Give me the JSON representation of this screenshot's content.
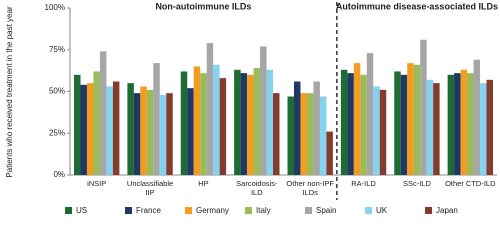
{
  "chart_data": {
    "type": "bar",
    "y_label": "Patients who received treatment in the past year",
    "annotations": [
      "Non-autoimmune ILDs",
      "Autoimmune disease-associated ILDs"
    ],
    "categories": [
      "iNSIP",
      "Unclassifiable IIP",
      "HP",
      "Sarcoidosis-ILD",
      "Other non-IPF ILDs",
      "RA-ILD",
      "SSc-ILD",
      "Other CTD-ILD"
    ],
    "series": [
      {
        "name": "US",
        "color": "#1e6b34",
        "values": [
          60,
          55,
          62,
          63,
          47,
          63,
          62,
          60
        ]
      },
      {
        "name": "France",
        "color": "#1f3864",
        "values": [
          54,
          49,
          52,
          61,
          56,
          61,
          60,
          61
        ]
      },
      {
        "name": "Germany",
        "color": "#f39c1f",
        "values": [
          55,
          53,
          65,
          60,
          49,
          67,
          67,
          63
        ]
      },
      {
        "name": "Italy",
        "color": "#9bbb59",
        "values": [
          62,
          51,
          61,
          64,
          49,
          60,
          66,
          61
        ]
      },
      {
        "name": "Spain",
        "color": "#a6a6a6",
        "values": [
          74,
          67,
          79,
          77,
          56,
          73,
          81,
          69
        ]
      },
      {
        "name": "UK",
        "color": "#86d3ef",
        "values": [
          53,
          48,
          66,
          63,
          47,
          53,
          57,
          55
        ]
      },
      {
        "name": "Japan",
        "color": "#843c2c",
        "values": [
          56,
          49,
          58,
          49,
          26,
          51,
          55,
          57
        ]
      }
    ],
    "ylim": [
      0,
      100
    ],
    "yticks": [
      {
        "value": 0,
        "label": "0%"
      },
      {
        "value": 25,
        "label": "25%"
      },
      {
        "value": 50,
        "label": "50%"
      },
      {
        "value": 75,
        "label": "75%"
      },
      {
        "value": 100,
        "label": "100%"
      }
    ],
    "grid": false
  }
}
